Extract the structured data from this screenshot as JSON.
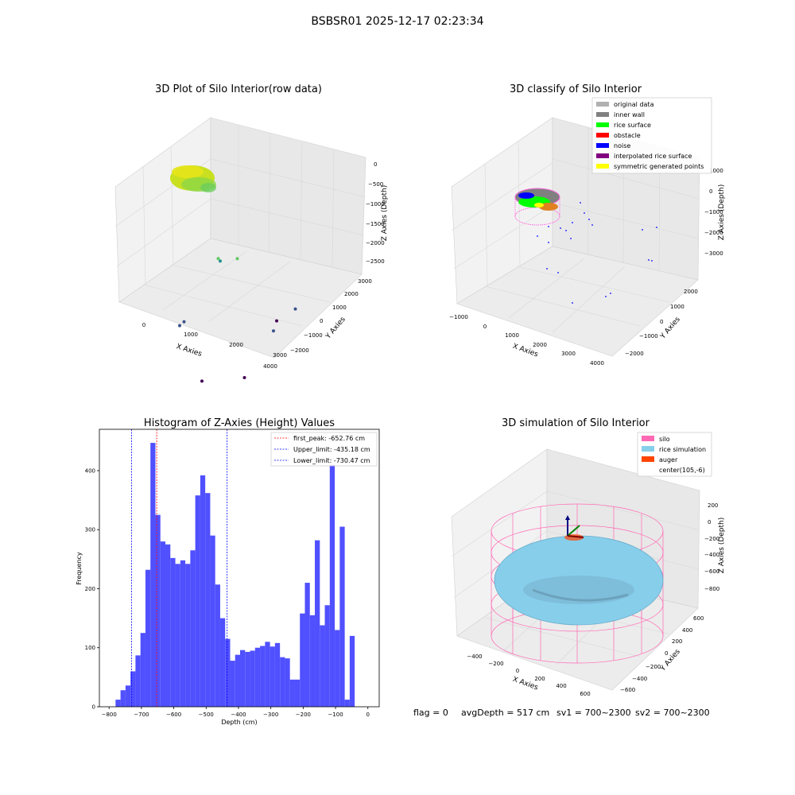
{
  "figure": {
    "title": "BSBSR01 2025-12-17 02:23:34",
    "footer": {
      "flag": "flag = 0",
      "avg_depth": "avgDepth = 517 cm",
      "sv1": "sv1 = 700~2300",
      "sv2": "sv2 = 700~2300"
    }
  },
  "chart_data": [
    {
      "type": "scatter",
      "title": "3D Plot of Silo Interior(row data)",
      "xlabel": "X Axies",
      "ylabel": "Y Axies",
      "zlabel": "Z Axies (Depth)",
      "x_ticks": [
        "0",
        "1000",
        "2000",
        "3000",
        "4000"
      ],
      "y_ticks": [
        "−2000",
        "−1000",
        "0",
        "1000",
        "2000",
        "3000"
      ],
      "z_ticks": [
        "0",
        "−500",
        "−1000",
        "−1500",
        "−2000",
        "−2500"
      ],
      "colormap": [
        "#440154",
        "#3b528b",
        "#21918c",
        "#5ec962",
        "#fde725"
      ],
      "points": [
        {
          "x": 3300,
          "y": 300,
          "z": -2400
        },
        {
          "x": 3600,
          "y": 700,
          "z": -2000
        },
        {
          "x": 3000,
          "y": 800,
          "z": -2500
        },
        {
          "x": 1300,
          "y": -500,
          "z": -2300
        },
        {
          "x": 1500,
          "y": -600,
          "z": -2100
        },
        {
          "x": 3500,
          "y": -1000,
          "z": -2800
        },
        {
          "x": 2700,
          "y": -1500,
          "z": -2800
        },
        {
          "x": 1500,
          "y": 700,
          "z": -1300
        },
        {
          "x": 1600,
          "y": 500,
          "z": -1100
        },
        {
          "x": 1900,
          "y": 800,
          "z": -1200
        }
      ]
    },
    {
      "type": "scatter",
      "title": "3D classify of Silo Interior",
      "xlabel": "X Axies",
      "ylabel": "Y Axies",
      "zlabel": "Z Axies (Depth)",
      "x_ticks": [
        "−1000",
        "0",
        "1000",
        "2000",
        "3000",
        "4000"
      ],
      "y_ticks": [
        "−2000",
        "−1000",
        "0",
        "1000",
        "2000"
      ],
      "z_ticks": [
        "1000",
        "0",
        "−1000",
        "−2000",
        "−3000"
      ],
      "legend": [
        {
          "label": "original data",
          "color": "#b0b0b0"
        },
        {
          "label": "inner wall",
          "color": "#808080"
        },
        {
          "label": "rice surface",
          "color": "#00ff00"
        },
        {
          "label": "obstacle",
          "color": "#ff0000"
        },
        {
          "label": "noise",
          "color": "#0000ff"
        },
        {
          "label": "interpolated rice surface",
          "color": "#800080"
        },
        {
          "label": "symmetric generated points",
          "color": "#ffff00"
        }
      ],
      "legend_loc": "upper right"
    },
    {
      "type": "bar",
      "title": "Histogram of Z-Axies (Height) Values",
      "xlabel": "Depth (cm)",
      "ylabel": "Frequency",
      "bin_start": -780,
      "bin_width": 15.4,
      "values": [
        12,
        28,
        36,
        60,
        87,
        125,
        232,
        447,
        325,
        280,
        275,
        252,
        242,
        248,
        242,
        265,
        358,
        392,
        362,
        290,
        207,
        150,
        115,
        78,
        88,
        96,
        93,
        95,
        100,
        103,
        110,
        102,
        108,
        84,
        82,
        46,
        46,
        158,
        210,
        155,
        282,
        138,
        172,
        410,
        130,
        305,
        12,
        120
      ],
      "xlim": [
        -830,
        35
      ],
      "ylim": [
        0,
        470
      ],
      "x_ticks": [
        "−800",
        "−700",
        "−600",
        "−500",
        "−400",
        "−300",
        "−200",
        "−100",
        "0"
      ],
      "y_ticks": [
        "0",
        "100",
        "200",
        "300",
        "400"
      ],
      "bar_color": "#5050ff",
      "lines": [
        {
          "label": "first_peak: -652.76 cm",
          "value": -652.76,
          "color": "#ff0000"
        },
        {
          "label": "Upper_limit: -435.18 cm",
          "value": -435.18,
          "color": "#0000ff"
        },
        {
          "label": "Lower_limit: -730.47 cm",
          "value": -730.47,
          "color": "#0000ff"
        }
      ],
      "legend_loc": "upper right"
    },
    {
      "type": "scatter",
      "title": "3D simulation of Silo Interior",
      "xlabel": "X Axies",
      "ylabel": "Y Axies",
      "zlabel": "Z Axies (Depth)",
      "x_ticks": [
        "−400",
        "−200",
        "0",
        "200",
        "400",
        "600"
      ],
      "y_ticks": [
        "−600",
        "−400",
        "−200",
        "0",
        "200",
        "400",
        "600"
      ],
      "z_ticks": [
        "200",
        "0",
        "−200",
        "−400",
        "−600",
        "−800"
      ],
      "legend": [
        {
          "label": "silo",
          "color": "#ff69b4"
        },
        {
          "label": "rice simulation",
          "color": "#87ceeb"
        },
        {
          "label": "auger",
          "color": "#ff4500"
        },
        {
          "label": "center(105,-6)",
          "color": "#ffffff"
        }
      ],
      "legend_loc": "upper right"
    }
  ]
}
